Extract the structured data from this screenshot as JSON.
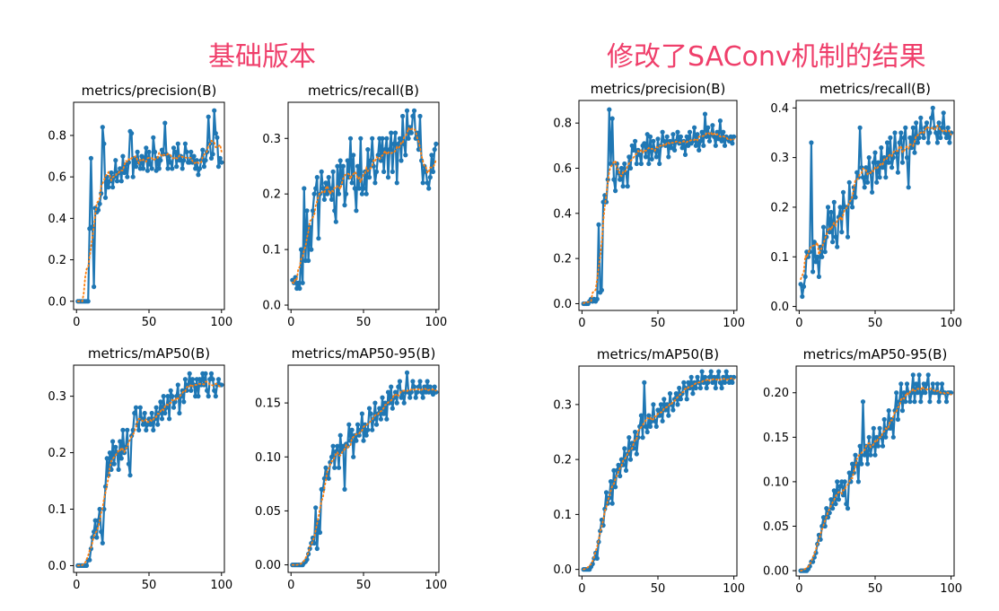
{
  "headings": {
    "left": "基础版本",
    "right": "修改了SAConv机制的结果"
  },
  "colors": {
    "series": "#1f77b4",
    "smooth": "#ff7f0e",
    "heading": "#ef3f6b"
  },
  "chart_data": [
    {
      "type": "line",
      "group": "基础版本",
      "title": "metrics/precision(B)",
      "xlim": [
        -2,
        102
      ],
      "ylim": [
        -0.04,
        0.96
      ],
      "xticks": [
        0,
        50,
        100
      ],
      "xtick_labels": [
        "0",
        "50",
        "100"
      ],
      "yticks": [
        0,
        0.2,
        0.4,
        0.6,
        0.8
      ],
      "ytick_labels": [
        "0.0",
        "0.2",
        "0.4",
        "0.6",
        "0.8"
      ],
      "series": [
        {
          "values": [
            0,
            0,
            0,
            0,
            0,
            0,
            0,
            0,
            0.35,
            0.69,
            0.36,
            0.07,
            0.45,
            0.43,
            0.44,
            0.47,
            0.52,
            0.84,
            0.76,
            0.5,
            0.6,
            0.55,
            0.58,
            0.62,
            0.55,
            0.6,
            0.68,
            0.58,
            0.62,
            0.64,
            0.58,
            0.7,
            0.62,
            0.66,
            0.6,
            0.67,
            0.82,
            0.81,
            0.6,
            0.69,
            0.65,
            0.72,
            0.67,
            0.64,
            0.7,
            0.64,
            0.69,
            0.74,
            0.63,
            0.72,
            0.66,
            0.64,
            0.79,
            0.72,
            0.63,
            0.69,
            0.64,
            0.68,
            0.73,
            0.71,
            0.86,
            0.71,
            0.64,
            0.7,
            0.67,
            0.64,
            0.74,
            0.72,
            0.65,
            0.76,
            0.68,
            0.7,
            0.64,
            0.68,
            0.76,
            0.72,
            0.67,
            0.67,
            0.72,
            0.67,
            0.7,
            0.64,
            0.68,
            0.61,
            0.64,
            0.68,
            0.73,
            0.65,
            0.68,
            0.72,
            0.89,
            0.76,
            0.69,
            0.71,
            0.92,
            0.81,
            0.79,
            0.65,
            0.69,
            0.67
          ]
        }
      ]
    },
    {
      "type": "line",
      "group": "基础版本",
      "title": "metrics/recall(B)",
      "xlim": [
        -2,
        102
      ],
      "ylim": [
        -0.008,
        0.365
      ],
      "xticks": [
        0,
        50,
        100
      ],
      "xtick_labels": [
        "0",
        "50",
        "100"
      ],
      "yticks": [
        0,
        0.1,
        0.2,
        0.3
      ],
      "ytick_labels": [
        "0.0",
        "0.1",
        "0.2",
        "0.3"
      ],
      "series": [
        {
          "values": [
            0.045,
            0.04,
            0.05,
            0.03,
            0.04,
            0.03,
            0.1,
            0.04,
            0.21,
            0.08,
            0.17,
            0.08,
            0.14,
            0.1,
            0.17,
            0.2,
            0.21,
            0.23,
            0.12,
            0.2,
            0.24,
            0.21,
            0.19,
            0.22,
            0.2,
            0.23,
            0.21,
            0.19,
            0.24,
            0.17,
            0.15,
            0.25,
            0.2,
            0.26,
            0.22,
            0.25,
            0.18,
            0.2,
            0.26,
            0.23,
            0.3,
            0.22,
            0.27,
            0.21,
            0.17,
            0.25,
            0.21,
            0.3,
            0.2,
            0.21,
            0.24,
            0.2,
            0.28,
            0.23,
            0.26,
            0.3,
            0.25,
            0.22,
            0.24,
            0.27,
            0.3,
            0.26,
            0.3,
            0.24,
            0.28,
            0.3,
            0.23,
            0.28,
            0.31,
            0.24,
            0.29,
            0.31,
            0.22,
            0.29,
            0.3,
            0.26,
            0.34,
            0.29,
            0.27,
            0.35,
            0.3,
            0.32,
            0.31,
            0.34,
            0.35,
            0.3,
            0.31,
            0.28,
            0.34,
            0.26,
            0.22,
            0.25,
            0.24,
            0.22,
            0.21,
            0.23,
            0.27,
            0.24,
            0.28,
            0.29
          ]
        }
      ]
    },
    {
      "type": "line",
      "group": "基础版本",
      "title": "metrics/mAP50(B)",
      "xlim": [
        -2,
        102
      ],
      "ylim": [
        -0.012,
        0.355
      ],
      "xticks": [
        0,
        50,
        100
      ],
      "xtick_labels": [
        "0",
        "50",
        "100"
      ],
      "yticks": [
        0,
        0.1,
        0.2,
        0.3
      ],
      "ytick_labels": [
        "0.0",
        "0.1",
        "0.2",
        "0.3"
      ],
      "series": [
        {
          "values": [
            0,
            0,
            0,
            0,
            0,
            0,
            0,
            0.01,
            0.01,
            0.03,
            0.05,
            0.06,
            0.08,
            0.05,
            0.08,
            0.1,
            0.06,
            0.04,
            0.1,
            0.14,
            0.19,
            0.16,
            0.2,
            0.17,
            0.22,
            0.18,
            0.21,
            0.2,
            0.17,
            0.22,
            0.19,
            0.24,
            0.2,
            0.21,
            0.24,
            0.18,
            0.16,
            0.23,
            0.24,
            0.27,
            0.28,
            0.25,
            0.24,
            0.28,
            0.26,
            0.25,
            0.27,
            0.24,
            0.25,
            0.26,
            0.25,
            0.27,
            0.24,
            0.26,
            0.28,
            0.25,
            0.27,
            0.29,
            0.26,
            0.3,
            0.27,
            0.28,
            0.3,
            0.26,
            0.31,
            0.3,
            0.28,
            0.29,
            0.3,
            0.32,
            0.27,
            0.3,
            0.31,
            0.29,
            0.33,
            0.31,
            0.32,
            0.34,
            0.31,
            0.33,
            0.32,
            0.3,
            0.33,
            0.3,
            0.33,
            0.32,
            0.34,
            0.32,
            0.34,
            0.31,
            0.3,
            0.33,
            0.34,
            0.33,
            0.31,
            0.3,
            0.32,
            0.33,
            0.32,
            0.32
          ]
        }
      ]
    },
    {
      "type": "line",
      "group": "基础版本",
      "title": "metrics/mAP50-95(B)",
      "xlim": [
        -2,
        102
      ],
      "ylim": [
        -0.007,
        0.185
      ],
      "xticks": [
        0,
        50,
        100
      ],
      "xtick_labels": [
        "0",
        "50",
        "100"
      ],
      "yticks": [
        0,
        0.05,
        0.1,
        0.15
      ],
      "ytick_labels": [
        "0.00",
        "0.05",
        "0.10",
        "0.15"
      ],
      "series": [
        {
          "values": [
            0,
            0,
            0,
            0,
            0,
            0,
            0,
            0,
            0.002,
            0.003,
            0.005,
            0.01,
            0.015,
            0.02,
            0.025,
            0.02,
            0.053,
            0.015,
            0.04,
            0.03,
            0.07,
            0.07,
            0.08,
            0.09,
            0.085,
            0.08,
            0.095,
            0.1,
            0.11,
            0.09,
            0.105,
            0.11,
            0.09,
            0.12,
            0.105,
            0.11,
            0.07,
            0.112,
            0.11,
            0.13,
            0.115,
            0.125,
            0.1,
            0.12,
            0.115,
            0.13,
            0.12,
            0.125,
            0.14,
            0.115,
            0.13,
            0.12,
            0.125,
            0.145,
            0.14,
            0.125,
            0.135,
            0.15,
            0.13,
            0.14,
            0.145,
            0.135,
            0.155,
            0.14,
            0.15,
            0.135,
            0.16,
            0.15,
            0.165,
            0.145,
            0.155,
            0.16,
            0.15,
            0.165,
            0.17,
            0.155,
            0.16,
            0.15,
            0.16,
            0.178,
            0.16,
            0.155,
            0.16,
            0.17,
            0.165,
            0.155,
            0.16,
            0.165,
            0.17,
            0.16,
            0.155,
            0.165,
            0.16,
            0.17,
            0.16,
            0.165,
            0.16,
            0.158,
            0.165,
            0.16
          ]
        }
      ]
    },
    {
      "type": "line",
      "group": "修改了SAConv机制的结果",
      "title": "metrics/precision(B)",
      "xlim": [
        -2,
        102
      ],
      "ylim": [
        -0.03,
        0.9
      ],
      "xticks": [
        0,
        50,
        100
      ],
      "xtick_labels": [
        "0",
        "50",
        "100"
      ],
      "yticks": [
        0,
        0.2,
        0.4,
        0.6,
        0.8
      ],
      "ytick_labels": [
        "0.0",
        "0.2",
        "0.4",
        "0.6",
        "0.8"
      ],
      "series": [
        {
          "values": [
            0,
            0,
            0,
            0,
            0.01,
            0.02,
            0.01,
            0.02,
            0.01,
            0.02,
            0.35,
            0.05,
            0.06,
            0.45,
            0.48,
            0.45,
            0.55,
            0.86,
            0.62,
            0.82,
            0.55,
            0.5,
            0.62,
            0.58,
            0.55,
            0.6,
            0.52,
            0.62,
            0.58,
            0.52,
            0.65,
            0.6,
            0.7,
            0.68,
            0.72,
            0.62,
            0.68,
            0.66,
            0.62,
            0.7,
            0.71,
            0.65,
            0.75,
            0.62,
            0.74,
            0.64,
            0.72,
            0.68,
            0.65,
            0.73,
            0.62,
            0.7,
            0.76,
            0.72,
            0.7,
            0.74,
            0.65,
            0.72,
            0.69,
            0.75,
            0.68,
            0.72,
            0.76,
            0.71,
            0.74,
            0.69,
            0.72,
            0.66,
            0.74,
            0.7,
            0.76,
            0.71,
            0.72,
            0.78,
            0.7,
            0.75,
            0.68,
            0.72,
            0.76,
            0.7,
            0.84,
            0.74,
            0.78,
            0.72,
            0.75,
            0.79,
            0.74,
            0.7,
            0.76,
            0.73,
            0.81,
            0.72,
            0.76,
            0.7,
            0.74,
            0.73,
            0.72,
            0.74,
            0.71,
            0.74
          ]
        }
      ]
    },
    {
      "type": "line",
      "group": "修改了SAConv机制的结果",
      "title": "metrics/recall(B)",
      "xlim": [
        -2,
        102
      ],
      "ylim": [
        -0.008,
        0.415
      ],
      "xticks": [
        0,
        50,
        100
      ],
      "xtick_labels": [
        "0",
        "50",
        "100"
      ],
      "yticks": [
        0,
        0.1,
        0.2,
        0.3,
        0.4
      ],
      "ytick_labels": [
        "0.0",
        "0.1",
        "0.2",
        "0.3",
        "0.4"
      ],
      "series": [
        {
          "values": [
            0.045,
            0.02,
            0.04,
            0.06,
            0.11,
            0.1,
            0.11,
            0.33,
            0.07,
            0.13,
            0.09,
            0.1,
            0.06,
            0.12,
            0.1,
            0.16,
            0.11,
            0.14,
            0.2,
            0.15,
            0.19,
            0.13,
            0.21,
            0.14,
            0.12,
            0.18,
            0.2,
            0.15,
            0.23,
            0.2,
            0.2,
            0.14,
            0.25,
            0.21,
            0.2,
            0.24,
            0.22,
            0.27,
            0.26,
            0.36,
            0.28,
            0.26,
            0.24,
            0.28,
            0.25,
            0.3,
            0.27,
            0.23,
            0.29,
            0.31,
            0.25,
            0.29,
            0.26,
            0.32,
            0.28,
            0.3,
            0.26,
            0.33,
            0.29,
            0.34,
            0.28,
            0.3,
            0.35,
            0.31,
            0.27,
            0.33,
            0.35,
            0.29,
            0.34,
            0.36,
            0.3,
            0.24,
            0.34,
            0.32,
            0.36,
            0.31,
            0.37,
            0.33,
            0.34,
            0.38,
            0.35,
            0.34,
            0.36,
            0.37,
            0.33,
            0.35,
            0.38,
            0.4,
            0.36,
            0.35,
            0.33,
            0.37,
            0.34,
            0.36,
            0.39,
            0.35,
            0.34,
            0.36,
            0.33,
            0.35
          ]
        }
      ]
    },
    {
      "type": "line",
      "group": "修改了SAConv机制的结果",
      "title": "metrics/mAP50(B)",
      "xlim": [
        -2,
        102
      ],
      "ylim": [
        -0.012,
        0.37
      ],
      "xticks": [
        0,
        50,
        100
      ],
      "xtick_labels": [
        "0",
        "50",
        "100"
      ],
      "yticks": [
        0,
        0.1,
        0.2,
        0.3
      ],
      "ytick_labels": [
        "0.0",
        "0.1",
        "0.2",
        "0.3"
      ],
      "series": [
        {
          "values": [
            0,
            0,
            0,
            0,
            0,
            0.005,
            0.01,
            0.02,
            0.03,
            0.02,
            0.05,
            0.07,
            0.09,
            0.08,
            0.11,
            0.14,
            0.12,
            0.13,
            0.16,
            0.12,
            0.18,
            0.15,
            0.18,
            0.19,
            0.17,
            0.2,
            0.19,
            0.22,
            0.18,
            0.21,
            0.24,
            0.2,
            0.23,
            0.22,
            0.25,
            0.21,
            0.24,
            0.26,
            0.28,
            0.24,
            0.34,
            0.26,
            0.25,
            0.28,
            0.26,
            0.27,
            0.3,
            0.27,
            0.26,
            0.29,
            0.28,
            0.3,
            0.27,
            0.31,
            0.29,
            0.3,
            0.28,
            0.32,
            0.3,
            0.29,
            0.31,
            0.32,
            0.3,
            0.33,
            0.31,
            0.32,
            0.34,
            0.33,
            0.31,
            0.34,
            0.33,
            0.35,
            0.32,
            0.34,
            0.33,
            0.35,
            0.34,
            0.33,
            0.36,
            0.34,
            0.35,
            0.33,
            0.34,
            0.35,
            0.36,
            0.34,
            0.35,
            0.33,
            0.35,
            0.36,
            0.34,
            0.33,
            0.35,
            0.34,
            0.36,
            0.35,
            0.34,
            0.35,
            0.34,
            0.35
          ]
        }
      ]
    },
    {
      "type": "line",
      "group": "修改了SAConv机制的结果",
      "title": "metrics/mAP50-95(B)",
      "xlim": [
        -2,
        102
      ],
      "ylim": [
        -0.006,
        0.23
      ],
      "xticks": [
        0,
        50,
        100
      ],
      "xtick_labels": [
        "0",
        "50",
        "100"
      ],
      "yticks": [
        0,
        0.05,
        0.1,
        0.15,
        0.2
      ],
      "ytick_labels": [
        "0.00",
        "0.05",
        "0.10",
        "0.15",
        "0.20"
      ],
      "series": [
        {
          "values": [
            0,
            0,
            0,
            0,
            0,
            0.002,
            0.005,
            0.01,
            0.01,
            0.015,
            0.02,
            0.03,
            0.04,
            0.035,
            0.05,
            0.06,
            0.05,
            0.07,
            0.06,
            0.065,
            0.08,
            0.07,
            0.09,
            0.075,
            0.1,
            0.08,
            0.095,
            0.1,
            0.085,
            0.1,
            0.075,
            0.07,
            0.11,
            0.1,
            0.12,
            0.11,
            0.13,
            0.12,
            0.1,
            0.14,
            0.12,
            0.19,
            0.13,
            0.14,
            0.12,
            0.15,
            0.13,
            0.14,
            0.16,
            0.13,
            0.15,
            0.14,
            0.16,
            0.15,
            0.14,
            0.17,
            0.15,
            0.16,
            0.18,
            0.16,
            0.17,
            0.15,
            0.18,
            0.2,
            0.17,
            0.19,
            0.21,
            0.18,
            0.2,
            0.19,
            0.21,
            0.2,
            0.19,
            0.2,
            0.22,
            0.19,
            0.21,
            0.2,
            0.22,
            0.19,
            0.2,
            0.21,
            0.2,
            0.21,
            0.22,
            0.19,
            0.2,
            0.21,
            0.2,
            0.2,
            0.21,
            0.19,
            0.2,
            0.21,
            0.2,
            0.2,
            0.19,
            0.2,
            0.2,
            0.2
          ]
        }
      ]
    }
  ]
}
